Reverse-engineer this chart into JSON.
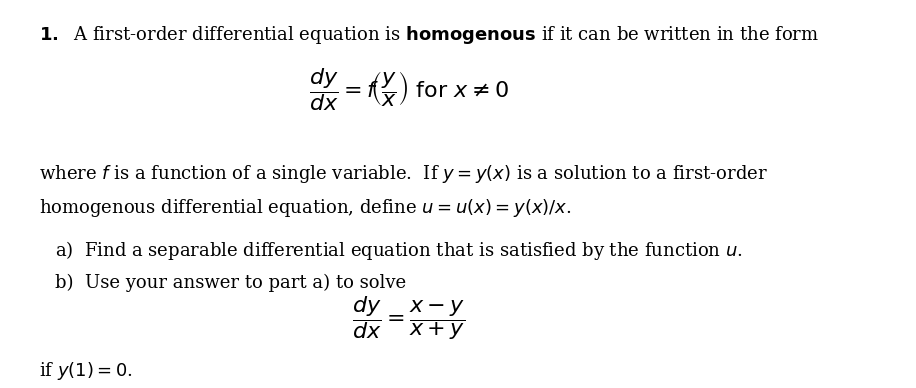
{
  "background_color": "#ffffff",
  "fig_width": 9.16,
  "fig_height": 3.88,
  "line1": "\\textbf{1.} A first-order differential equation is \\textbf{homogenous} if it can be written in the form",
  "eq1": "\\dfrac{dy}{dx} = f\\!\\left(\\dfrac{y}{x}\\right) \\text{ for } x \\neq 0",
  "line2": "where $f$ is a function of a single variable.  If $y = y(x)$ is a solution to a first-order",
  "line3": "homogenous differential equation, define $u = u(x) = y(x)/x$.",
  "line4a": "a)  Find a separable differential equation that is satisfied by the function $u$.",
  "line4b": "b)  Use your answer to part a) to solve",
  "eq2": "\\dfrac{dy}{dx} = \\dfrac{x-y}{x+y}",
  "line5": "if $y(1) = 0$."
}
